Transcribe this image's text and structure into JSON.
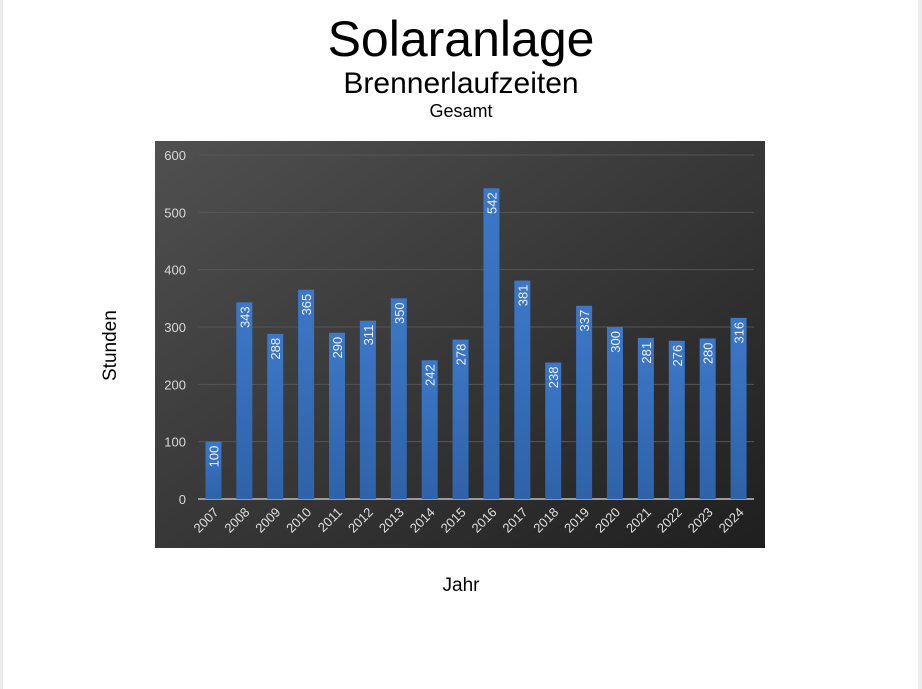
{
  "chart_data": {
    "type": "bar",
    "title": "Solaranlage",
    "subtitle": "Brennerlaufzeiten",
    "subsubtitle": "Gesamt",
    "xlabel": "Jahr",
    "ylabel": "Stunden",
    "ylim": [
      0,
      600
    ],
    "yticks": [
      0,
      100,
      200,
      300,
      400,
      500,
      600
    ],
    "grid": true,
    "categories": [
      "2007",
      "2008",
      "2009",
      "2010",
      "2011",
      "2012",
      "2013",
      "2014",
      "2015",
      "2016",
      "2017",
      "2018",
      "2019",
      "2020",
      "2021",
      "2022",
      "2023",
      "2024"
    ],
    "values": [
      100,
      343,
      288,
      365,
      290,
      311,
      350,
      242,
      278,
      542,
      381,
      238,
      337,
      300,
      281,
      276,
      280,
      316
    ],
    "bar_color": "#3a72c0",
    "background_color": "#3a3a3a"
  }
}
